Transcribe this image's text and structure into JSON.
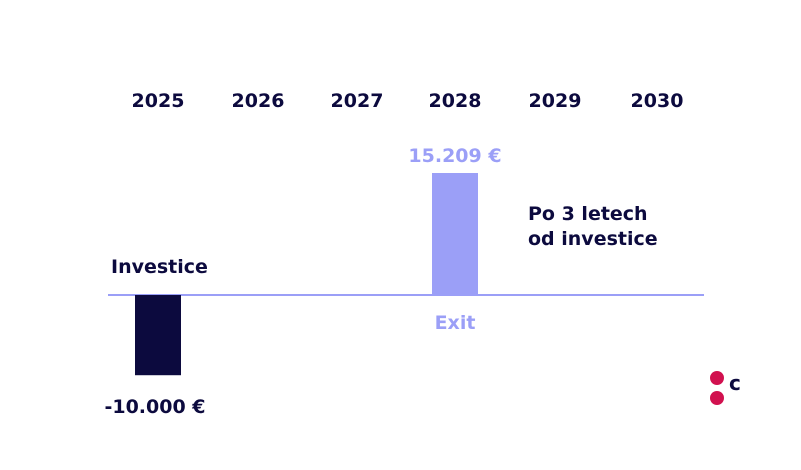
{
  "chart_data": {
    "type": "bar",
    "categories": [
      "2025",
      "2026",
      "2027",
      "2028",
      "2029",
      "2030"
    ],
    "values": [
      -10000,
      null,
      null,
      15209,
      null,
      null
    ],
    "value_labels": [
      "-10.000 €",
      "",
      "",
      "15.209 €",
      "",
      ""
    ],
    "category_notes": [
      "Investice",
      "",
      "",
      "Exit",
      "",
      ""
    ],
    "annotation": [
      "Po 3 letech",
      "od investice"
    ],
    "title": "",
    "xlabel": "",
    "ylabel": "",
    "colors": {
      "negative": "#0c0a3e",
      "positive": "#9b9ff7",
      "baseline": "#9b9ff7",
      "text": "#0c0a3e",
      "accent": "#d1114f"
    }
  },
  "logo": {
    "text": "c"
  }
}
